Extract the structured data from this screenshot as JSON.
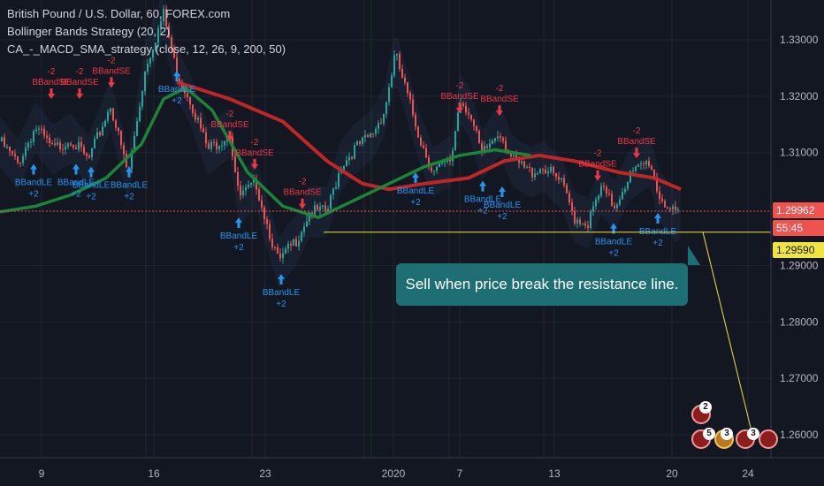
{
  "legend": {
    "symbol": "British Pound / U.S. Dollar, 60, FOREX.com",
    "study1": "Bollinger Bands Strategy (20, 2)",
    "study2": "CA_-_MACD_SMA_strategy (close, 12, 26, 9, 200, 50)"
  },
  "price_axis": [
    "1.33000",
    "1.32000",
    "1.31000",
    "1.29000",
    "1.28000",
    "1.27000",
    "1.26000"
  ],
  "time_axis": [
    "9",
    "16",
    "23",
    "2020",
    "7",
    "13",
    "20",
    "24"
  ],
  "price_tags": {
    "current": "1.29962",
    "countdown": "55:45",
    "resistance": "1.29590"
  },
  "annotation": "Sell when price break the resistance line.",
  "signal_labels": {
    "long": "BBandLE",
    "short": "BBandSE",
    "long_qty": "+2",
    "short_qty": "-2"
  },
  "events": [
    "2",
    "5",
    "3",
    "3"
  ],
  "colors": {
    "background": "#131722",
    "candle_up": "#26a69a",
    "candle_down": "#ef5350",
    "sma_slow": "#c62828",
    "sma_fast": "#1b8a3a",
    "signal_long": "#2196f3",
    "signal_short": "#f23645",
    "resistance_line": "#f0e442",
    "callout": "#1e6f73"
  }
}
